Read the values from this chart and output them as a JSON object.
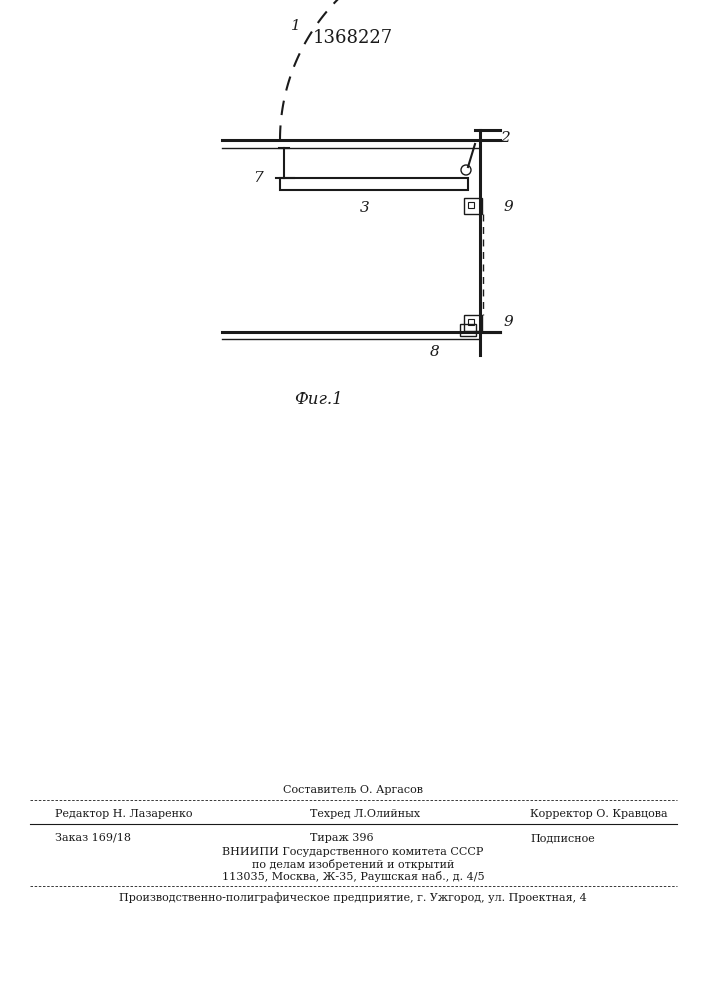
{
  "title": "1368227",
  "fig_label": "Фиг.1",
  "bg_color": "#ffffff",
  "line_color": "#1a1a1a",
  "footer": {
    "sestavitel": "Составитель О. Аргасов",
    "redaktor": "Редактор Н. Лазаренко",
    "tehred": "Техред Л.Олийных",
    "korrektor": "Корректор О. Кравцова",
    "zakaz": "Заказ 169/18",
    "tirazh": "Тираж 396",
    "podpisnoe": "Подписное",
    "vnipi1": "ВНИИПИ Государственного комитета СССР",
    "vnipi2": "по делам изобретений и открытий",
    "address": "113035, Москва, Ж-35, Раушская наб., д. 4/5",
    "enterprise": "Производственно-полиграфическое предприятие, г. Ужгород, ул. Проектная, 4"
  }
}
